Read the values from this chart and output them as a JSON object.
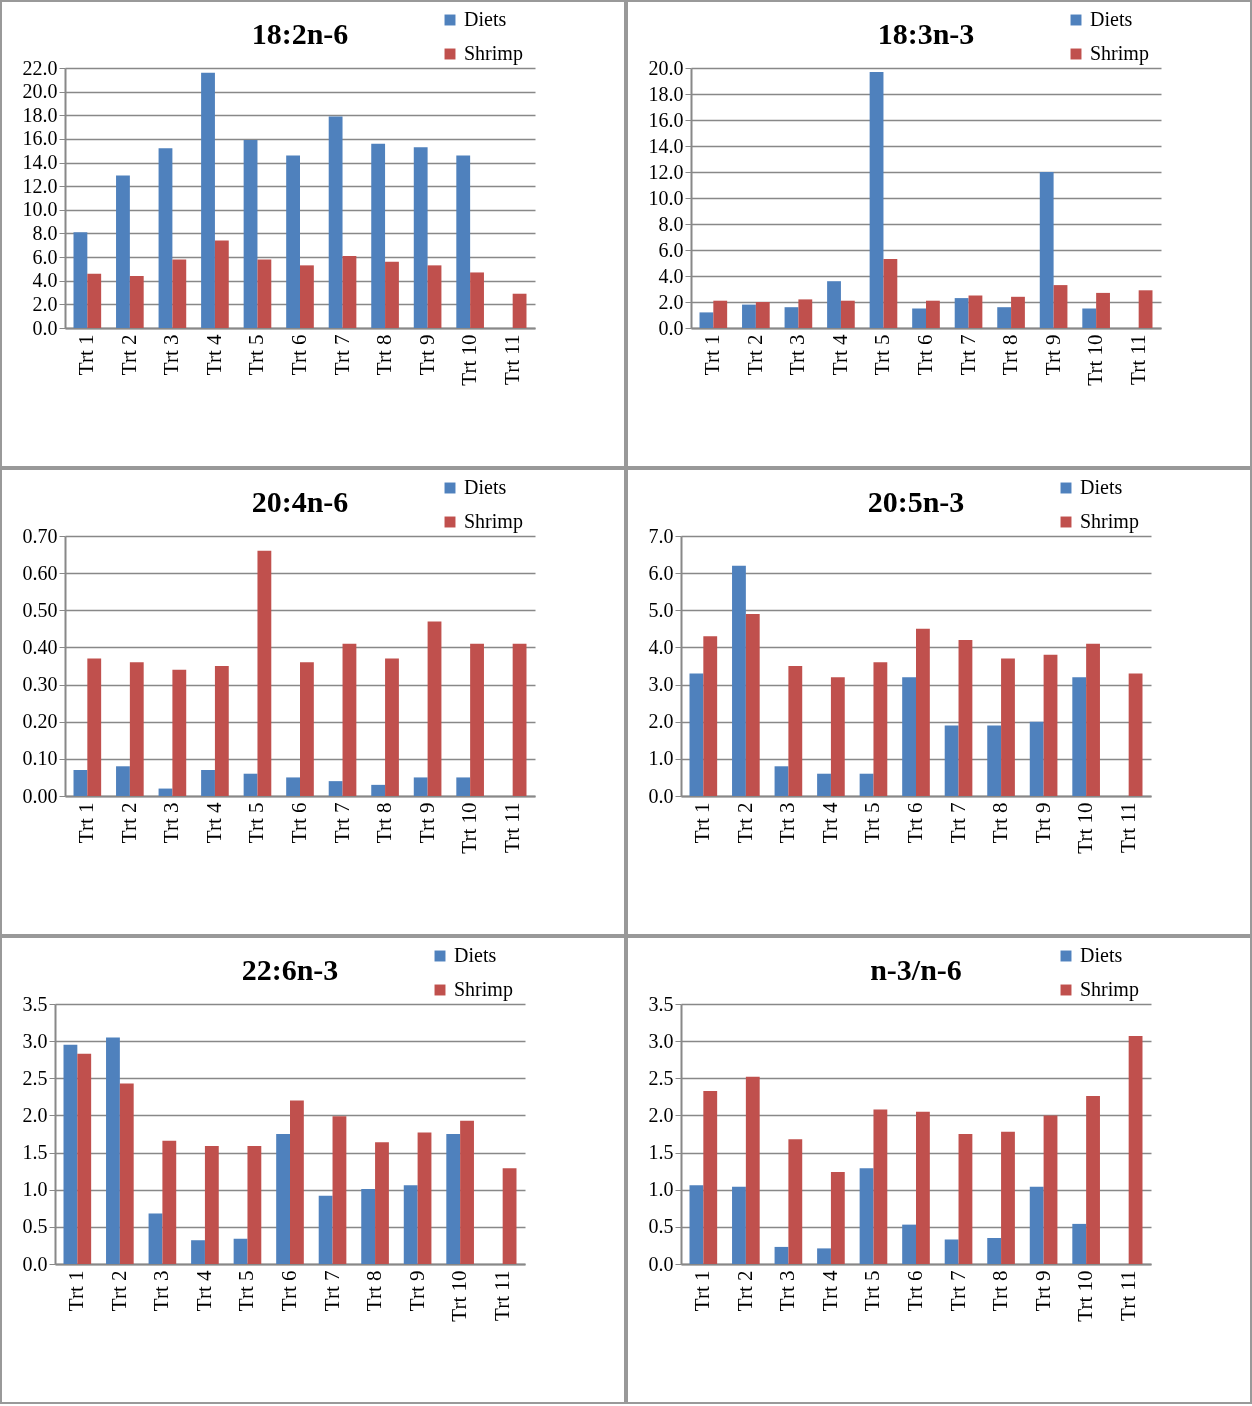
{
  "chart_data": [
    {
      "type": "bar",
      "title": "18:2n-6",
      "categories": [
        "Trt 1",
        "Trt 2",
        "Trt 3",
        "Trt 4",
        "Trt 5",
        "Trt 6",
        "Trt 7",
        "Trt 8",
        "Trt 9",
        "Trt 10",
        "Trt 11"
      ],
      "series": [
        {
          "name": "Diets",
          "color": "#4f81bd",
          "values": [
            8.1,
            12.9,
            15.2,
            21.6,
            15.9,
            14.6,
            17.9,
            15.6,
            15.3,
            14.6,
            null
          ]
        },
        {
          "name": "Shrimp",
          "color": "#c0504d",
          "values": [
            4.6,
            4.4,
            5.8,
            7.4,
            5.8,
            5.3,
            6.1,
            5.6,
            5.3,
            4.7,
            2.9
          ]
        }
      ],
      "ylim": [
        0,
        22
      ],
      "yticks": [
        {
          "value": 0,
          "label": "0.0"
        },
        {
          "value": 2,
          "label": "2.0"
        },
        {
          "value": 4,
          "label": "4.0"
        },
        {
          "value": 6,
          "label": "6.0"
        },
        {
          "value": 8,
          "label": "8.0"
        },
        {
          "value": 10,
          "label": "10.0"
        },
        {
          "value": 12,
          "label": "12.0"
        },
        {
          "value": 14,
          "label": "14.0"
        },
        {
          "value": 16,
          "label": "16.0"
        },
        {
          "value": 18,
          "label": "18.0"
        },
        {
          "value": 20,
          "label": "20.0"
        },
        {
          "value": 22,
          "label": "22.0"
        }
      ],
      "grid": "y",
      "legend": "top right"
    },
    {
      "type": "bar",
      "title": "18:3n-3",
      "categories": [
        "Trt 1",
        "Trt 2",
        "Trt 3",
        "Trt 4",
        "Trt 5",
        "Trt 6",
        "Trt 7",
        "Trt 8",
        "Trt 9",
        "Trt 10",
        "Trt 11"
      ],
      "series": [
        {
          "name": "Diets",
          "color": "#4f81bd",
          "values": [
            1.2,
            1.8,
            1.6,
            3.6,
            19.7,
            1.5,
            2.3,
            1.6,
            12.0,
            1.5,
            null
          ]
        },
        {
          "name": "Shrimp",
          "color": "#c0504d",
          "values": [
            2.1,
            2.0,
            2.2,
            2.1,
            5.3,
            2.1,
            2.5,
            2.4,
            3.3,
            2.7,
            2.9
          ]
        }
      ],
      "ylim": [
        0,
        20
      ],
      "yticks": [
        {
          "value": 0,
          "label": "0.0"
        },
        {
          "value": 2,
          "label": "2.0"
        },
        {
          "value": 4,
          "label": "4.0"
        },
        {
          "value": 6,
          "label": "6.0"
        },
        {
          "value": 8,
          "label": "8.0"
        },
        {
          "value": 10,
          "label": "10.0"
        },
        {
          "value": 12,
          "label": "12.0"
        },
        {
          "value": 14,
          "label": "14.0"
        },
        {
          "value": 16,
          "label": "16.0"
        },
        {
          "value": 18,
          "label": "18.0"
        },
        {
          "value": 20,
          "label": "20.0"
        }
      ],
      "grid": "y",
      "legend": "top right"
    },
    {
      "type": "bar",
      "title": "20:4n-6",
      "categories": [
        "Trt 1",
        "Trt 2",
        "Trt 3",
        "Trt 4",
        "Trt 5",
        "Trt 6",
        "Trt 7",
        "Trt 8",
        "Trt 9",
        "Trt 10",
        "Trt 11"
      ],
      "series": [
        {
          "name": "Diets",
          "color": "#4f81bd",
          "values": [
            0.07,
            0.08,
            0.02,
            0.07,
            0.06,
            0.05,
            0.04,
            0.03,
            0.05,
            0.05,
            null
          ]
        },
        {
          "name": "Shrimp",
          "color": "#c0504d",
          "values": [
            0.37,
            0.36,
            0.34,
            0.35,
            0.66,
            0.36,
            0.41,
            0.37,
            0.47,
            0.41,
            0.41
          ]
        }
      ],
      "ylim": [
        0,
        0.7
      ],
      "yticks": [
        {
          "value": 0,
          "label": "0.00"
        },
        {
          "value": 0.1,
          "label": "0.10"
        },
        {
          "value": 0.2,
          "label": "0.20"
        },
        {
          "value": 0.3,
          "label": "0.30"
        },
        {
          "value": 0.4,
          "label": "0.40"
        },
        {
          "value": 0.5,
          "label": "0.50"
        },
        {
          "value": 0.6,
          "label": "0.60"
        },
        {
          "value": 0.7,
          "label": "0.70"
        }
      ],
      "grid": "y",
      "legend": "top right"
    },
    {
      "type": "bar",
      "title": "20:5n-3",
      "categories": [
        "Trt 1",
        "Trt 2",
        "Trt 3",
        "Trt 4",
        "Trt 5",
        "Trt 6",
        "Trt 7",
        "Trt 8",
        "Trt 9",
        "Trt 10",
        "Trt 11"
      ],
      "series": [
        {
          "name": "Diets",
          "color": "#4f81bd",
          "values": [
            3.3,
            6.2,
            0.8,
            0.6,
            0.6,
            3.2,
            1.9,
            1.9,
            2.0,
            3.2,
            null
          ]
        },
        {
          "name": "Shrimp",
          "color": "#c0504d",
          "values": [
            4.3,
            4.9,
            3.5,
            3.2,
            3.6,
            4.5,
            4.2,
            3.7,
            3.8,
            4.1,
            3.3
          ]
        }
      ],
      "ylim": [
        0,
        7
      ],
      "yticks": [
        {
          "value": 0,
          "label": "0.0"
        },
        {
          "value": 1,
          "label": "1.0"
        },
        {
          "value": 2,
          "label": "2.0"
        },
        {
          "value": 3,
          "label": "3.0"
        },
        {
          "value": 4,
          "label": "4.0"
        },
        {
          "value": 5,
          "label": "5.0"
        },
        {
          "value": 6,
          "label": "6.0"
        },
        {
          "value": 7,
          "label": "7.0"
        }
      ],
      "grid": "y",
      "legend": "top right"
    },
    {
      "type": "bar",
      "title": "22:6n-3",
      "categories": [
        "Trt 1",
        "Trt 2",
        "Trt 3",
        "Trt 4",
        "Trt 5",
        "Trt 6",
        "Trt 7",
        "Trt 8",
        "Trt 9",
        "Trt 10",
        "Trt 11"
      ],
      "series": [
        {
          "name": "Diets",
          "color": "#4f81bd",
          "values": [
            2.95,
            3.05,
            0.68,
            0.32,
            0.34,
            1.75,
            0.92,
            1.01,
            1.06,
            1.75,
            null
          ]
        },
        {
          "name": "Shrimp",
          "color": "#c0504d",
          "values": [
            2.83,
            2.43,
            1.66,
            1.59,
            1.59,
            2.2,
            1.99,
            1.64,
            1.77,
            1.93,
            1.29
          ]
        }
      ],
      "ylim": [
        0,
        3.5
      ],
      "yticks": [
        {
          "value": 0,
          "label": "0.0"
        },
        {
          "value": 0.5,
          "label": "0.5"
        },
        {
          "value": 1,
          "label": "1.0"
        },
        {
          "value": 1.5,
          "label": "1.5"
        },
        {
          "value": 2,
          "label": "2.0"
        },
        {
          "value": 2.5,
          "label": "2.5"
        },
        {
          "value": 3,
          "label": "3.0"
        },
        {
          "value": 3.5,
          "label": "3.5"
        }
      ],
      "grid": "y",
      "legend": "top right"
    },
    {
      "type": "bar",
      "title": "n-3/n-6",
      "categories": [
        "Trt 1",
        "Trt 2",
        "Trt 3",
        "Trt 4",
        "Trt 5",
        "Trt 6",
        "Trt 7",
        "Trt 8",
        "Trt 9",
        "Trt 10",
        "Trt 11"
      ],
      "series": [
        {
          "name": "Diets",
          "color": "#4f81bd",
          "values": [
            1.06,
            1.04,
            0.23,
            0.21,
            1.29,
            0.53,
            0.33,
            0.35,
            1.04,
            0.54,
            null
          ]
        },
        {
          "name": "Shrimp",
          "color": "#c0504d",
          "values": [
            2.33,
            2.52,
            1.68,
            1.24,
            2.08,
            2.05,
            1.75,
            1.78,
            2.0,
            2.26,
            3.07
          ]
        }
      ],
      "ylim": [
        0,
        3.5
      ],
      "yticks": [
        {
          "value": 0,
          "label": "0.0"
        },
        {
          "value": 0.5,
          "label": "0.5"
        },
        {
          "value": 1,
          "label": "1.0"
        },
        {
          "value": 1.5,
          "label": "1.5"
        },
        {
          "value": 2,
          "label": "2.0"
        },
        {
          "value": 2.5,
          "label": "2.5"
        },
        {
          "value": 3,
          "label": "3.0"
        },
        {
          "value": 3.5,
          "label": "3.5"
        }
      ],
      "grid": "y",
      "legend": "top right"
    }
  ]
}
